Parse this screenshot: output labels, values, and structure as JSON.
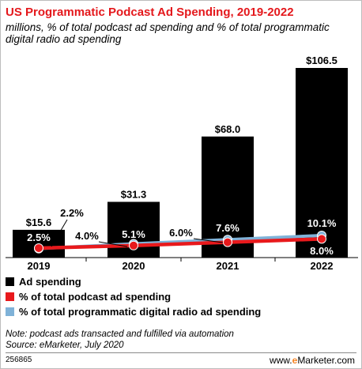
{
  "header": {
    "title": "US Programmatic Podcast Ad Spending, 2019-2022",
    "subtitle": "millions, % of total podcast ad spending and % of total programmatic digital radio ad spending"
  },
  "colors": {
    "title": "#e4181c",
    "bars": "#000000",
    "podcast_line": "#e8191c",
    "radio_line": "#7fb2d8"
  },
  "chart_data": {
    "type": "bar",
    "categories": [
      "2019",
      "2020",
      "2021",
      "2022"
    ],
    "series": [
      {
        "name": "Ad spending",
        "type": "bar",
        "values": [
          15.6,
          31.3,
          68.0,
          106.5
        ],
        "labels": [
          "$15.6",
          "$31.3",
          "$68.0",
          "$106.5"
        ]
      },
      {
        "name": "% of total podcast ad spending",
        "type": "line",
        "values": [
          2.5,
          4.0,
          6.0,
          8.0
        ],
        "labels": [
          "2.5%",
          "4.0%",
          "6.0%",
          "8.0%"
        ]
      },
      {
        "name": "% of total programmatic digital radio ad spending",
        "type": "line",
        "values": [
          2.2,
          5.1,
          7.6,
          10.1
        ],
        "labels": [
          "2.2%",
          "5.1%",
          "7.6%",
          "10.1%"
        ]
      }
    ],
    "ylim": [
      0,
      106.5
    ],
    "grid": false,
    "legend_placement": "bottom-left"
  },
  "legend": [
    {
      "label": "Ad spending",
      "color": "#000000"
    },
    {
      "label": "% of total podcast ad spending",
      "color": "#e8191c"
    },
    {
      "label": "% of total programmatic digital radio ad spending",
      "color": "#7fb2d8"
    }
  ],
  "footer": {
    "note": "Note: podcast ads transacted and fulfilled via automation",
    "source": "Source: eMarketer, July 2020",
    "chart_id": "256865",
    "brand_prefix": "www.",
    "brand_mark": "e",
    "brand_suffix": "Marketer.com"
  }
}
